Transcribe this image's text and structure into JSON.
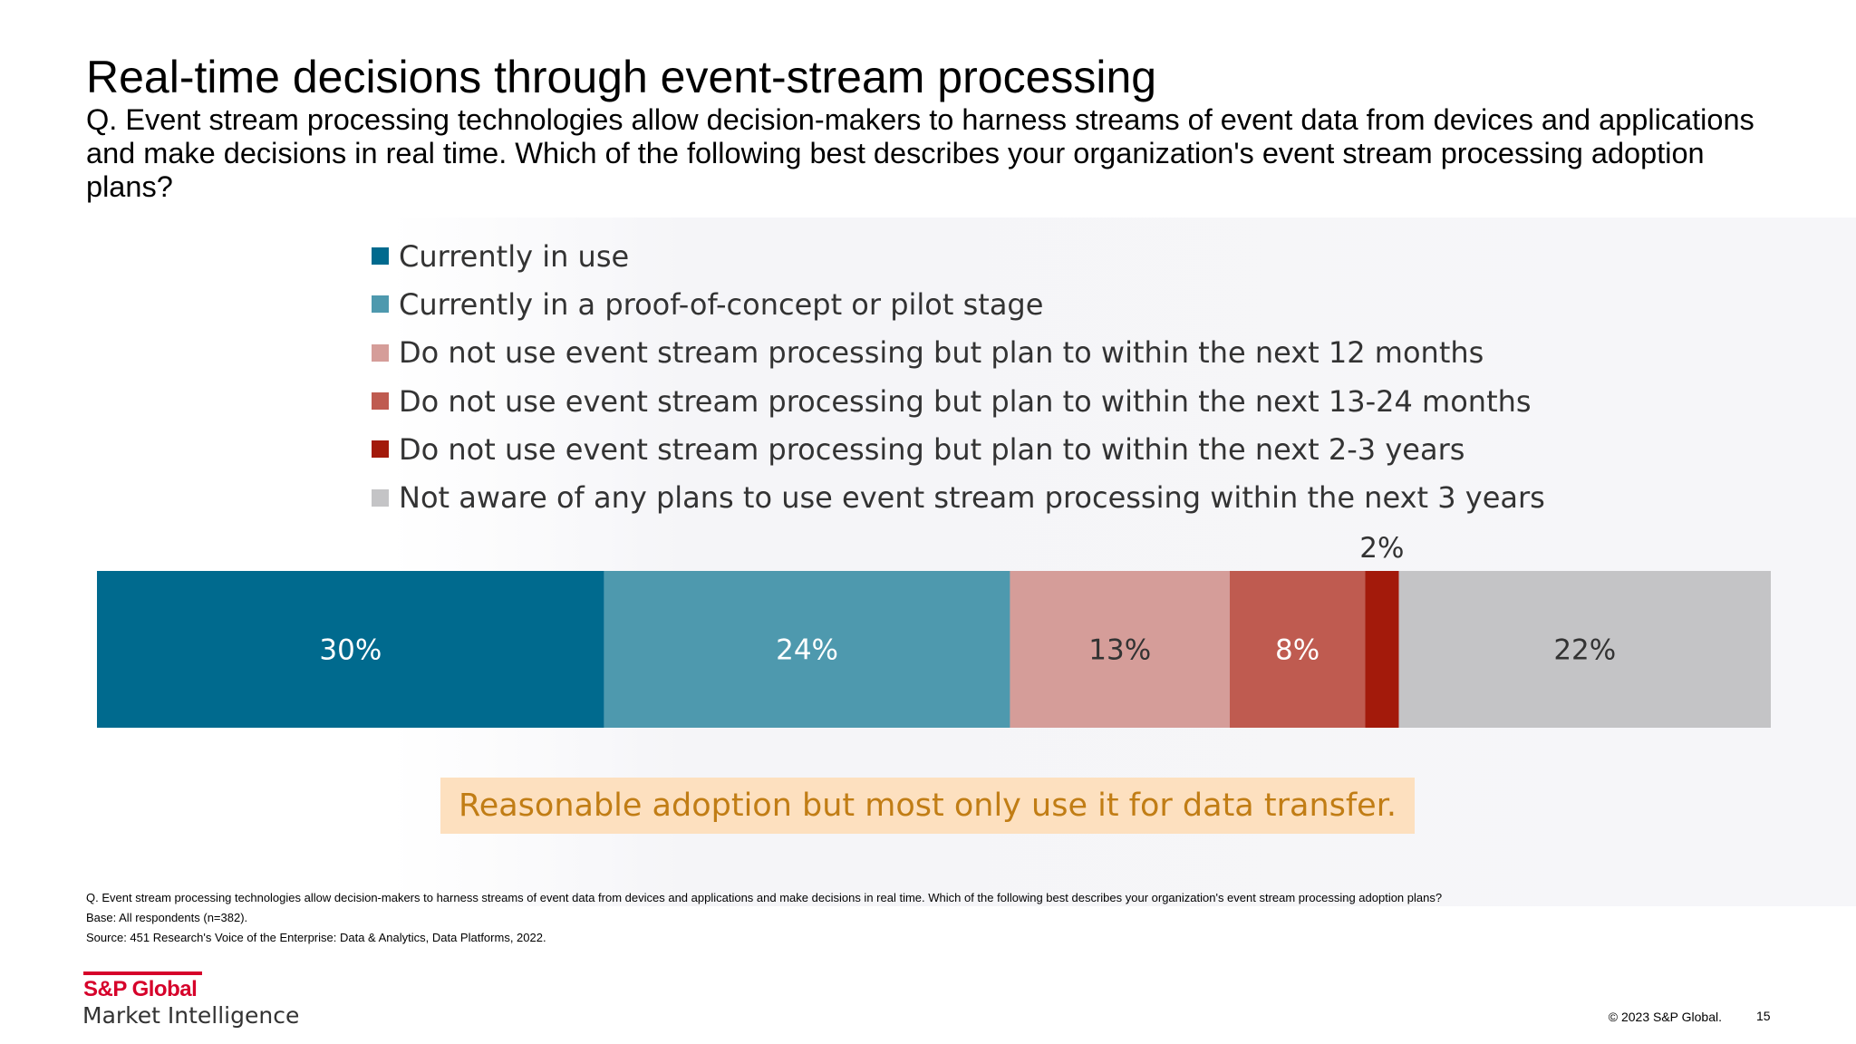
{
  "title": "Real-time decisions through event-stream processing",
  "subtitle": "Q. Event stream processing technologies allow decision-makers to harness streams of event data from devices and applications and make decisions in real time. Which of the following best describes your organization's event stream processing adoption plans?",
  "chart_data": {
    "type": "bar",
    "orientation": "horizontal",
    "stacked": true,
    "categories": [
      ""
    ],
    "legend_placement": "top",
    "grid": false,
    "xlim": [
      0,
      100
    ],
    "series": [
      {
        "name": "Currently in use",
        "value": 30,
        "label": "30%",
        "color": "#006a8e"
      },
      {
        "name": "Currently in a proof-of-concept or pilot stage",
        "value": 24,
        "label": "24%",
        "color": "#4e99ae"
      },
      {
        "name": "Do not use event stream processing but plan to within the next 12 months",
        "value": 13,
        "label": "13%",
        "color": "#d59d99"
      },
      {
        "name": "Do not use event stream processing but plan to within the next 13-24 months",
        "value": 8,
        "label": "8%",
        "color": "#bf5b50"
      },
      {
        "name": "Do not use event stream processing but plan to within the next 2-3 years",
        "value": 2,
        "label": "2%",
        "color": "#a31a0b"
      },
      {
        "name": "Not aware of any plans to use event stream processing within the next 3 years",
        "value": 22,
        "label": "22%",
        "color": "#c4c4c6"
      }
    ]
  },
  "callout": "Reasonable adoption but most only use it for data transfer.",
  "footnotes": [
    "Q. Event stream processing technologies allow decision-makers to harness streams of event data from devices and applications and make decisions in real time. Which of the following best describes your organization's event stream processing adoption plans?",
    "Base: All respondents (n=382).",
    "Source: 451 Research's Voice of the Enterprise: Data & Analytics, Data Platforms, 2022."
  ],
  "logo": {
    "line1": "S&P Global",
    "line2": "Market Intelligence"
  },
  "copyright": "© 2023 S&P Global.",
  "page_number": "15"
}
